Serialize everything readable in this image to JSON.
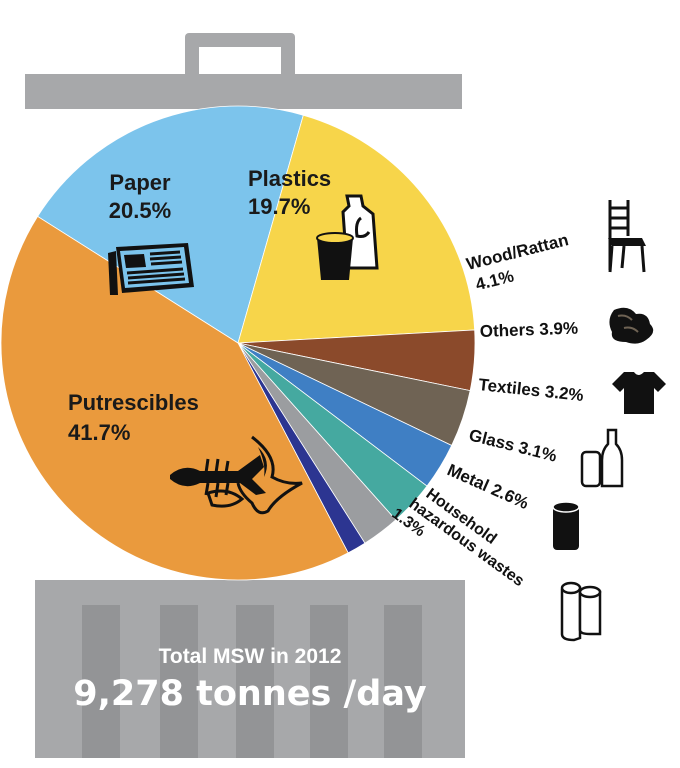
{
  "chart_data": {
    "type": "pie",
    "slices": [
      {
        "label": "Paper",
        "value_text": "20.5%",
        "value": 20.5,
        "color": "#7cc4ec"
      },
      {
        "label": "Plastics",
        "value_text": "19.7%",
        "value": 19.7,
        "color": "#f7d54a"
      },
      {
        "label": "Wood/Rattan",
        "value_text": "4.1%",
        "value": 4.1,
        "color": "#8b4a2b"
      },
      {
        "label": "Others",
        "value_text": "3.9%",
        "value": 3.9,
        "color": "#6f6354"
      },
      {
        "label": "Textiles",
        "value_text": "3.2%",
        "value": 3.2,
        "color": "#3f7fc4"
      },
      {
        "label": "Glass",
        "value_text": "3.1%",
        "value": 3.1,
        "color": "#45a9a0"
      },
      {
        "label": "Metal",
        "value_text": "2.6%",
        "value": 2.6,
        "color": "#9b9da0"
      },
      {
        "label": "Household hazardous wastes",
        "label_lines": [
          "Household",
          "hazardous wastes"
        ],
        "value_text": "1.3%",
        "value": 1.3,
        "color": "#2c3591"
      },
      {
        "label": "Putrescibles",
        "value_text": "41.7%",
        "value": 41.7,
        "color": "#ea9a3d"
      }
    ]
  },
  "total": {
    "line1": "Total MSW in 2012",
    "line2": "9,278 tonnes /day"
  },
  "icons": [
    "newspaper-icon",
    "jug-and-cup-icon",
    "fish-bone-icon",
    "chair-icon",
    "rubbish-icon",
    "t-shirt-icon",
    "bottles-icon",
    "can-icon",
    "paper-rolls-icon"
  ],
  "colors": {
    "bin": "#a7a8aa",
    "bin_slot": "#939496",
    "ink": "#111111"
  }
}
